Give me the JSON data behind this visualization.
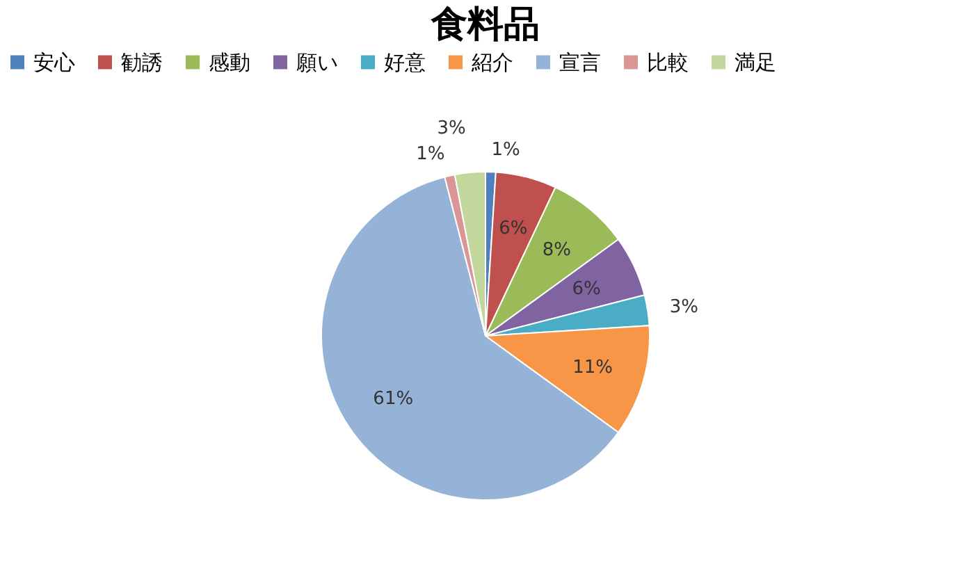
{
  "chart_data": {
    "type": "pie",
    "title": "食料品",
    "categories": [
      "安心",
      "勧誘",
      "感動",
      "願い",
      "好意",
      "紹介",
      "宣言",
      "比較",
      "満足"
    ],
    "values": [
      1,
      6,
      8,
      6,
      3,
      11,
      61,
      1,
      3
    ],
    "colors": [
      "#4f81bd",
      "#c0504d",
      "#9bbb59",
      "#8064a2",
      "#4bacc6",
      "#f79646",
      "#95b3d7",
      "#d99694",
      "#c3d69b"
    ],
    "value_labels": [
      "1%",
      "6%",
      "8%",
      "6%",
      "3%",
      "11%",
      "61%",
      "1%",
      "3%"
    ],
    "legend": "top"
  }
}
